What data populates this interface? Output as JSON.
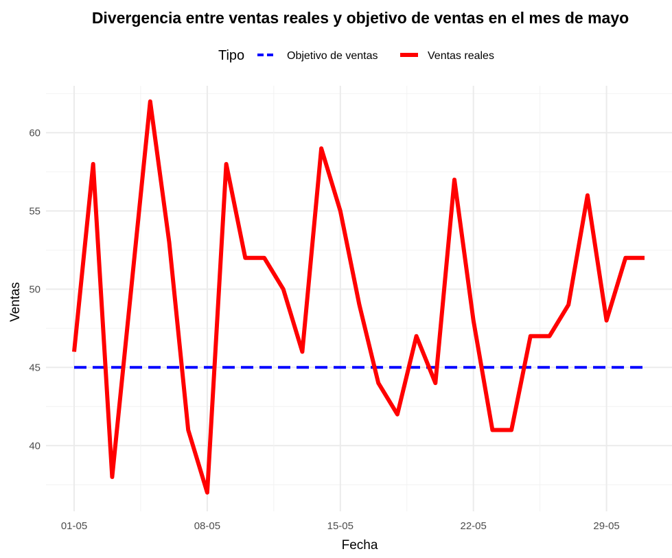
{
  "chart_data": {
    "type": "line",
    "title": "Divergencia entre ventas reales y objetivo de ventas en el mes de mayo",
    "xlabel": "Fecha",
    "ylabel": "Ventas",
    "legend": {
      "title": "Tipo",
      "position": "top"
    },
    "x_ticks": [
      "01-05",
      "08-05",
      "15-05",
      "22-05",
      "29-05"
    ],
    "y_ticks": [
      40,
      45,
      50,
      55,
      60
    ],
    "xlim": [
      "2024-05-01",
      "2024-05-31"
    ],
    "ylim": [
      35.8,
      63
    ],
    "grid": true,
    "x": [
      "01-05",
      "02-05",
      "03-05",
      "04-05",
      "05-05",
      "06-05",
      "07-05",
      "08-05",
      "09-05",
      "10-05",
      "11-05",
      "12-05",
      "13-05",
      "14-05",
      "15-05",
      "16-05",
      "17-05",
      "18-05",
      "19-05",
      "20-05",
      "21-05",
      "22-05",
      "23-05",
      "24-05",
      "25-05",
      "26-05",
      "27-05",
      "28-05",
      "29-05",
      "30-05",
      "31-05"
    ],
    "series": [
      {
        "name": "Objetivo de ventas",
        "color": "#0000ff",
        "style": "dashed",
        "values": [
          45,
          45,
          45,
          45,
          45,
          45,
          45,
          45,
          45,
          45,
          45,
          45,
          45,
          45,
          45,
          45,
          45,
          45,
          45,
          45,
          45,
          45,
          45,
          45,
          45,
          45,
          45,
          45,
          45,
          45,
          45
        ]
      },
      {
        "name": "Ventas reales",
        "color": "#ff0000",
        "style": "solid",
        "values": [
          46,
          58,
          38,
          50,
          62,
          53,
          41,
          37,
          58,
          52,
          52,
          50,
          46,
          59,
          55,
          49,
          44,
          42,
          47,
          44,
          57,
          48,
          41,
          41,
          47,
          47,
          49,
          56,
          48,
          52,
          52
        ]
      }
    ]
  }
}
